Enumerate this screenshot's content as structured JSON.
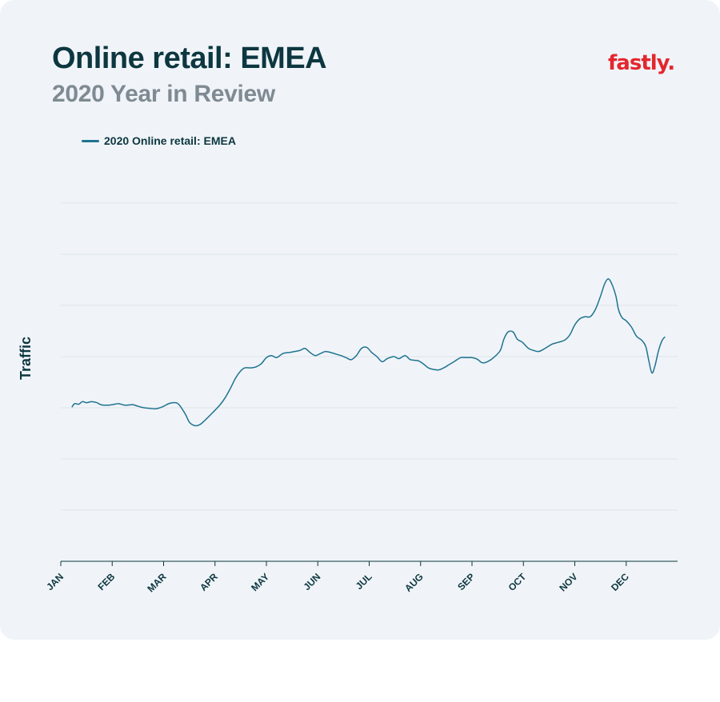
{
  "header": {
    "title": "Online retail: EMEA",
    "subtitle": "2020 Year in Review",
    "logo_text": "fastly."
  },
  "colors": {
    "background": "#f0f4f8",
    "title": "#0d3740",
    "subtitle": "#7f8a92",
    "line": "#1f7390",
    "grid": "#dde3e8",
    "logo": "#e4262d"
  },
  "chart_data": {
    "type": "line",
    "title": "Online retail: EMEA",
    "subtitle": "2020 Year in Review",
    "xlabel": "",
    "ylabel": "Traffic",
    "x_tick_labels": [
      "JAN",
      "FEB",
      "MAR",
      "APR",
      "MAY",
      "JUN",
      "JUL",
      "AUG",
      "SEP",
      "OCT",
      "NOV",
      "DEC"
    ],
    "y_tick_labels_shown": false,
    "ylim": [
      0,
      7
    ],
    "xlim": [
      0,
      12
    ],
    "grid": true,
    "legend_position": "top-left",
    "series": [
      {
        "name": "2020 Online retail: EMEA",
        "points": [
          [
            0.22,
            3.02
          ],
          [
            0.27,
            3.08
          ],
          [
            0.35,
            3.07
          ],
          [
            0.42,
            3.12
          ],
          [
            0.5,
            3.1
          ],
          [
            0.6,
            3.12
          ],
          [
            0.7,
            3.1
          ],
          [
            0.78,
            3.06
          ],
          [
            0.9,
            3.05
          ],
          [
            1.0,
            3.06
          ],
          [
            1.12,
            3.08
          ],
          [
            1.25,
            3.05
          ],
          [
            1.4,
            3.06
          ],
          [
            1.5,
            3.03
          ],
          [
            1.62,
            3.0
          ],
          [
            1.72,
            2.99
          ],
          [
            1.85,
            2.98
          ],
          [
            1.98,
            3.02
          ],
          [
            2.1,
            3.08
          ],
          [
            2.22,
            3.1
          ],
          [
            2.3,
            3.06
          ],
          [
            2.42,
            2.88
          ],
          [
            2.5,
            2.72
          ],
          [
            2.58,
            2.66
          ],
          [
            2.65,
            2.65
          ],
          [
            2.72,
            2.68
          ],
          [
            2.82,
            2.77
          ],
          [
            2.95,
            2.9
          ],
          [
            3.1,
            3.06
          ],
          [
            3.2,
            3.2
          ],
          [
            3.3,
            3.38
          ],
          [
            3.4,
            3.58
          ],
          [
            3.5,
            3.72
          ],
          [
            3.58,
            3.78
          ],
          [
            3.7,
            3.78
          ],
          [
            3.8,
            3.8
          ],
          [
            3.9,
            3.86
          ],
          [
            4.0,
            3.98
          ],
          [
            4.1,
            4.02
          ],
          [
            4.2,
            3.98
          ],
          [
            4.32,
            4.06
          ],
          [
            4.45,
            4.08
          ],
          [
            4.55,
            4.1
          ],
          [
            4.65,
            4.12
          ],
          [
            4.75,
            4.16
          ],
          [
            4.85,
            4.08
          ],
          [
            4.95,
            4.02
          ],
          [
            5.05,
            4.06
          ],
          [
            5.15,
            4.1
          ],
          [
            5.25,
            4.08
          ],
          [
            5.35,
            4.05
          ],
          [
            5.45,
            4.02
          ],
          [
            5.55,
            3.98
          ],
          [
            5.65,
            3.94
          ],
          [
            5.75,
            4.02
          ],
          [
            5.85,
            4.16
          ],
          [
            5.95,
            4.18
          ],
          [
            6.05,
            4.08
          ],
          [
            6.15,
            4.0
          ],
          [
            6.25,
            3.9
          ],
          [
            6.35,
            3.96
          ],
          [
            6.48,
            4.0
          ],
          [
            6.58,
            3.96
          ],
          [
            6.7,
            4.02
          ],
          [
            6.8,
            3.94
          ],
          [
            6.95,
            3.92
          ],
          [
            7.05,
            3.86
          ],
          [
            7.15,
            3.78
          ],
          [
            7.25,
            3.75
          ],
          [
            7.35,
            3.74
          ],
          [
            7.45,
            3.78
          ],
          [
            7.55,
            3.84
          ],
          [
            7.65,
            3.9
          ],
          [
            7.78,
            3.98
          ],
          [
            7.9,
            3.98
          ],
          [
            8.0,
            3.98
          ],
          [
            8.1,
            3.95
          ],
          [
            8.2,
            3.88
          ],
          [
            8.3,
            3.9
          ],
          [
            8.42,
            3.98
          ],
          [
            8.55,
            4.12
          ],
          [
            8.62,
            4.34
          ],
          [
            8.7,
            4.48
          ],
          [
            8.8,
            4.48
          ],
          [
            8.88,
            4.34
          ],
          [
            8.98,
            4.28
          ],
          [
            9.1,
            4.16
          ],
          [
            9.2,
            4.12
          ],
          [
            9.3,
            4.1
          ],
          [
            9.42,
            4.16
          ],
          [
            9.55,
            4.24
          ],
          [
            9.68,
            4.28
          ],
          [
            9.8,
            4.32
          ],
          [
            9.9,
            4.42
          ],
          [
            10.0,
            4.62
          ],
          [
            10.1,
            4.74
          ],
          [
            10.2,
            4.78
          ],
          [
            10.3,
            4.78
          ],
          [
            10.4,
            4.92
          ],
          [
            10.5,
            5.18
          ],
          [
            10.58,
            5.42
          ],
          [
            10.65,
            5.52
          ],
          [
            10.72,
            5.42
          ],
          [
            10.8,
            5.18
          ],
          [
            10.85,
            4.92
          ],
          [
            10.92,
            4.76
          ],
          [
            11.0,
            4.7
          ],
          [
            11.1,
            4.58
          ],
          [
            11.2,
            4.4
          ],
          [
            11.3,
            4.32
          ],
          [
            11.38,
            4.2
          ],
          [
            11.44,
            3.92
          ],
          [
            11.5,
            3.68
          ],
          [
            11.56,
            3.82
          ],
          [
            11.63,
            4.12
          ],
          [
            11.7,
            4.32
          ],
          [
            11.75,
            4.38
          ]
        ]
      }
    ]
  }
}
